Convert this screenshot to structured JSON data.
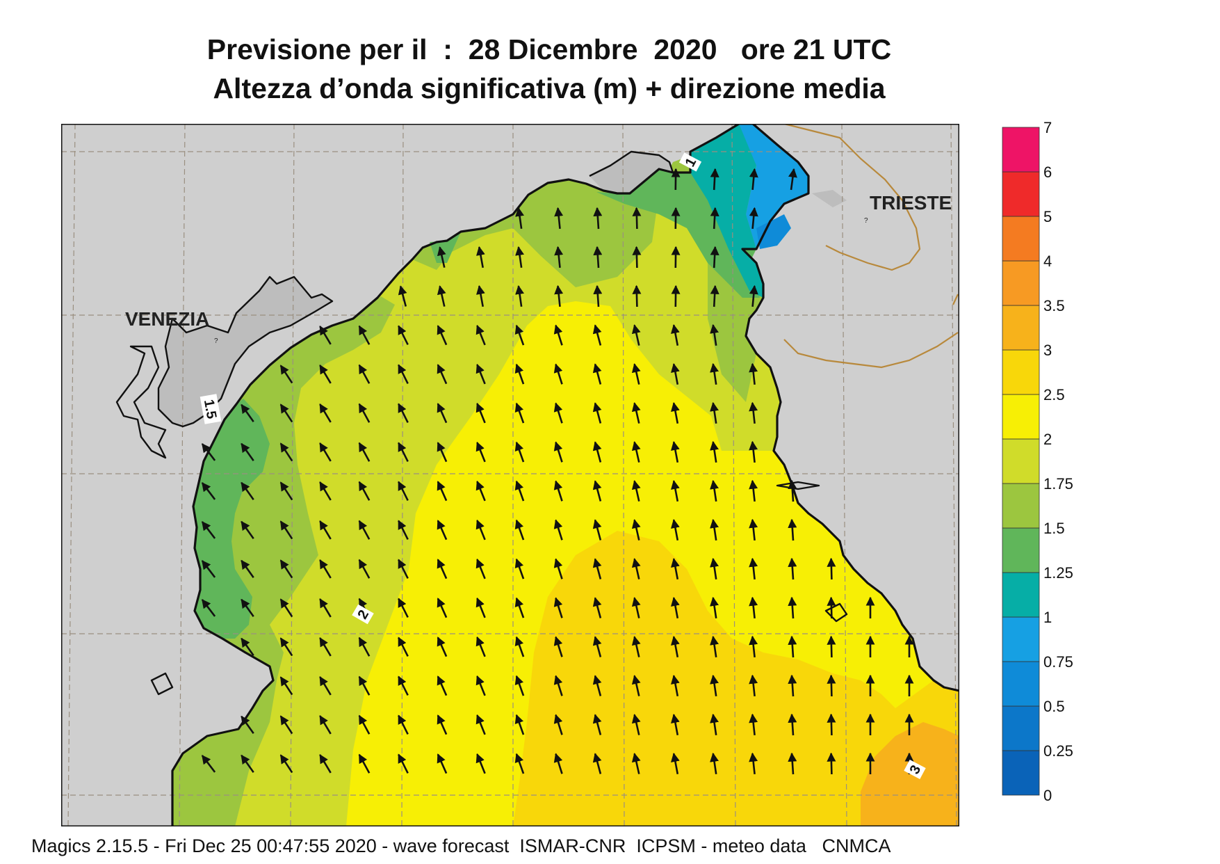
{
  "title": {
    "line1": "Previsione per il  :  28 Dicembre  2020   ore 21 UTC",
    "line2": "Altezza d’onda significativa (m) + direzione media"
  },
  "labels": {
    "city_venezia": "VENEZIA",
    "city_trieste": "TRIESTE",
    "contour_1": "1",
    "contour_1_5": "1.5",
    "contour_2": "2",
    "contour_3": "3",
    "unknown_marker": "?"
  },
  "footer": "Magics 2.15.5 - Fri Dec 25 00:47:55 2020 - wave forecast  ISMAR-CNR  ICPSM - meteo data   CNMCA",
  "colors": {
    "land": "#cfcfcf",
    "coast": "#111111",
    "border": "#b8893c",
    "grid": "#9a8f80"
  },
  "legend": {
    "ticks": [
      "0",
      "0.25",
      "0.5",
      "0.75",
      "1",
      "1.25",
      "1.5",
      "1.75",
      "2",
      "2.5",
      "3",
      "3.5",
      "4",
      "5",
      "6",
      "7"
    ],
    "colors": [
      "#0a63b8",
      "#0c77c9",
      "#0f8bd8",
      "#16a0e3",
      "#06aea6",
      "#60b65a",
      "#9cc63f",
      "#d0dc2a",
      "#f7ef05",
      "#f8d70a",
      "#f7b21b",
      "#f79a23",
      "#f47b21",
      "#ef2a2a",
      "#ee1466"
    ]
  }
}
